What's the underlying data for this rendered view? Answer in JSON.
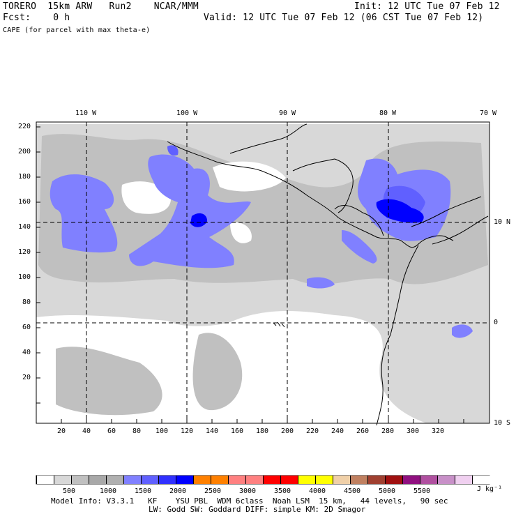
{
  "header": {
    "line1_left": "TORERO  15km ARW   Run2    NCAR/MMM",
    "line1_right": "Init: 12 UTC Tue 07 Feb 12",
    "line2_left": "Fcst:    0 h",
    "line2_right": "Valid: 12 UTC Tue 07 Feb 12 (06 CST Tue 07 Feb 12)",
    "line3": "CAPE (for parcel with max theta-e)"
  },
  "map": {
    "lon_labels": [
      "110 W",
      "100 W",
      "90 W",
      "80 W",
      "70 W"
    ],
    "lat_labels": [
      "10 N",
      "0",
      "10 S"
    ],
    "y_ticks": [
      "220",
      "200",
      "180",
      "160",
      "140",
      "120",
      "100",
      "80",
      "60",
      "40",
      "20"
    ],
    "x_ticks": [
      "20",
      "40",
      "60",
      "80",
      "100",
      "120",
      "140",
      "160",
      "180",
      "200",
      "220",
      "240",
      "260",
      "280",
      "300",
      "320"
    ]
  },
  "legend": {
    "values": [
      "500",
      "1000",
      "1500",
      "2000",
      "2500",
      "3000",
      "3500",
      "4000",
      "4500",
      "5000",
      "5500"
    ],
    "unit": "J kg⁻¹",
    "colors": [
      "#ffffff",
      "#d8d8d8",
      "#c0c0c0",
      "#a8a8a8",
      "#b0b0b0",
      "#8080ff",
      "#6060ff",
      "#3030ff",
      "#0000ff",
      "#ff8000",
      "#ff8000",
      "#ff8080",
      "#ff8080",
      "#ff0000",
      "#ff0000",
      "#ffff00",
      "#ffff00",
      "#f0d0a8",
      "#c08060",
      "#a04030",
      "#a01010",
      "#901080",
      "#b050a0",
      "#c890c8",
      "#f0d0f0",
      "#ffffff"
    ]
  },
  "footer": {
    "line1": "Model Info: V3.3.1   KF    YSU PBL  WDM 6class  Noah LSM  15 km,   44 levels,   90 sec",
    "line2": "LW: Godd SW: Goddard DIFF: simple KM: 2D Smagor"
  }
}
